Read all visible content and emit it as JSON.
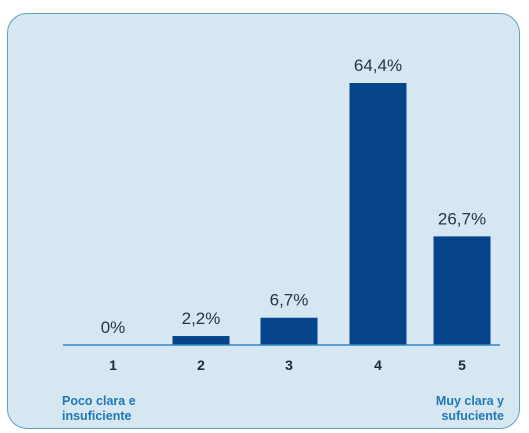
{
  "chart_data": {
    "type": "bar",
    "categories": [
      "1",
      "2",
      "3",
      "4",
      "5"
    ],
    "values": [
      0,
      2.2,
      6.7,
      64.4,
      26.7
    ],
    "value_labels": [
      "0%",
      "2,2%",
      "6,7%",
      "64,4%",
      "26,7%"
    ],
    "title": "",
    "xlabel": "",
    "ylabel": "",
    "ylim": [
      0,
      64.4
    ],
    "grid": false,
    "legend": "none",
    "scale_endpoints": {
      "low": [
        "Poco clara e",
        "insuficiente"
      ],
      "high": [
        "Muy clara y",
        "sufuciente"
      ]
    }
  },
  "colors": {
    "bar": "#05448a",
    "panel_background": "#d6e7f2",
    "panel_border": "#5fa1bb",
    "axis": "#2f86c3",
    "endpoint_text": "#1f78b4"
  }
}
